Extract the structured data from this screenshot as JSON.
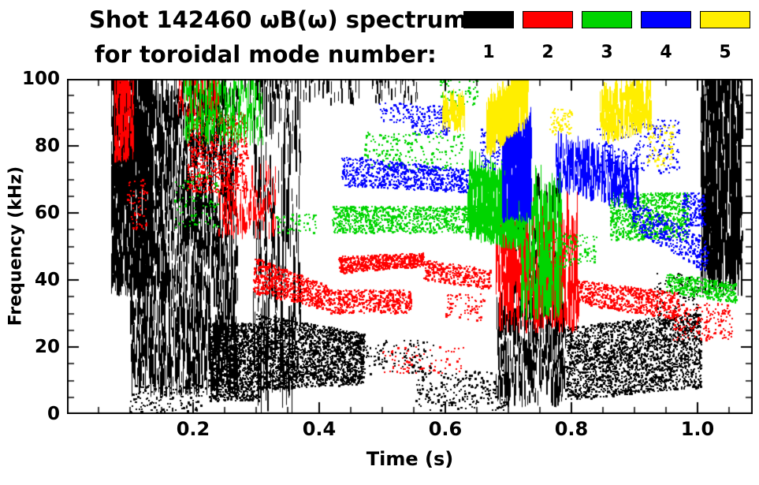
{
  "header": {
    "title_line1": "Shot 142460 ωB(ω) spectrum",
    "title_line2": "for toroidal mode number:"
  },
  "legend": {
    "items": [
      {
        "label": "1",
        "color": "#000000"
      },
      {
        "label": "2",
        "color": "#ff0000"
      },
      {
        "label": "3",
        "color": "#00d400"
      },
      {
        "label": "4",
        "color": "#0000ff"
      },
      {
        "label": "5",
        "color": "#ffee00"
      }
    ]
  },
  "chart_data": {
    "type": "scatter",
    "title": "Shot 142460 ωB(ω) spectrum for toroidal mode number",
    "xlabel": "Time (s)",
    "ylabel": "Frequency (kHz)",
    "xlim": [
      0,
      1.0875
    ],
    "ylim": [
      0,
      100
    ],
    "x_ticks": [
      0.2,
      0.4,
      0.6,
      0.8,
      1.0
    ],
    "x_tick_labels": [
      "0.2",
      "0.4",
      "0.6",
      "0.8",
      "1.0"
    ],
    "y_ticks": [
      0,
      20,
      40,
      60,
      80,
      100
    ],
    "y_tick_labels": [
      "0",
      "20",
      "40",
      "60",
      "80",
      "100"
    ],
    "x_minor_step": 0.05,
    "y_minor_step": 5,
    "grid": false,
    "legend_position": "top-right",
    "seed": 7,
    "series": [
      {
        "name": "toroidal mode n=1",
        "label": "1",
        "color": "#000000",
        "clusters": [
          {
            "t": [
              0.07,
              0.135
            ],
            "f": [
              35,
              97
            ],
            "n": 900,
            "kind": "streaks",
            "len": [
              2,
              12
            ]
          },
          {
            "t": [
              0.1,
              0.27
            ],
            "f": [
              5,
              95
            ],
            "n": 1700,
            "kind": "streaks",
            "len": [
              2,
              10
            ]
          },
          {
            "t": [
              0.1,
              0.22
            ],
            "f": [
              0,
              9
            ],
            "n": 150,
            "kind": "dots"
          },
          {
            "t": [
              0.225,
              0.305
            ],
            "f": [
              4,
              27
            ],
            "n": 1300,
            "kind": "dots"
          },
          {
            "t": [
              0.295,
              0.37
            ],
            "f": [
              0,
              100
            ],
            "n": 240,
            "kind": "streaks",
            "len": [
              3,
              16
            ]
          },
          {
            "t": [
              0.3,
              0.47
            ],
            "f": [
              7,
              30
            ],
            "f_end": [
              9,
              24
            ],
            "n": 2100,
            "kind": "dots"
          },
          {
            "t": [
              0.28,
              0.56
            ],
            "f": [
              92,
              100
            ],
            "n": 110,
            "kind": "streaks",
            "len": [
              2,
              5
            ]
          },
          {
            "t": [
              0.46,
              0.58
            ],
            "f": [
              12,
              22
            ],
            "n": 130,
            "kind": "dots"
          },
          {
            "t": [
              0.55,
              0.7
            ],
            "f": [
              1,
              13
            ],
            "n": 240,
            "kind": "dots"
          },
          {
            "t": [
              0.68,
              0.79
            ],
            "f": [
              2,
              30
            ],
            "n": 380,
            "kind": "streaks",
            "len": [
              2,
              8
            ]
          },
          {
            "t": [
              0.7,
              0.78
            ],
            "f": [
              25,
              66
            ],
            "n": 200,
            "kind": "streaks",
            "len": [
              2,
              8
            ]
          },
          {
            "t": [
              0.79,
              1.005
            ],
            "f": [
              4,
              26
            ],
            "f_end": [
              8,
              30
            ],
            "n": 2300,
            "kind": "dots"
          },
          {
            "t": [
              0.93,
              1.0
            ],
            "f": [
              25,
              42
            ],
            "n": 110,
            "kind": "dots"
          },
          {
            "t": [
              1.005,
              1.07
            ],
            "f": [
              35,
              100
            ],
            "n": 650,
            "kind": "streaks",
            "len": [
              3,
              14
            ]
          }
        ]
      },
      {
        "name": "toroidal mode n=2",
        "label": "2",
        "color": "#ff0000",
        "clusters": [
          {
            "t": [
              0.075,
              0.105
            ],
            "f": [
              75,
              100
            ],
            "n": 190,
            "kind": "streaks",
            "len": [
              2,
              8
            ]
          },
          {
            "t": [
              0.095,
              0.125
            ],
            "f": [
              55,
              70
            ],
            "n": 60,
            "kind": "dots"
          },
          {
            "t": [
              0.175,
              0.24
            ],
            "f": [
              88,
              100
            ],
            "n": 110,
            "kind": "streaks",
            "len": [
              2,
              6
            ]
          },
          {
            "t": [
              0.19,
              0.285
            ],
            "f": [
              66,
              90
            ],
            "n": 650,
            "kind": "dots"
          },
          {
            "t": [
              0.24,
              0.33
            ],
            "f": [
              52,
              70
            ],
            "n": 150,
            "kind": "streaks",
            "len": [
              2,
              6
            ]
          },
          {
            "t": [
              0.295,
              0.415
            ],
            "f": [
              36,
              47
            ],
            "f_end": [
              31,
              38
            ],
            "n": 650,
            "kind": "dots"
          },
          {
            "t": [
              0.415,
              0.545
            ],
            "f": [
              30,
              37
            ],
            "n": 500,
            "kind": "dots"
          },
          {
            "t": [
              0.43,
              0.565
            ],
            "f": [
              42,
              47
            ],
            "f_end": [
              44,
              48
            ],
            "n": 600,
            "kind": "dots"
          },
          {
            "t": [
              0.565,
              0.67
            ],
            "f": [
              40,
              46
            ],
            "f_end": [
              37,
              43
            ],
            "n": 320,
            "kind": "dots"
          },
          {
            "t": [
              0.5,
              0.63
            ],
            "f": [
              12,
              20
            ],
            "n": 80,
            "kind": "dots"
          },
          {
            "t": [
              0.6,
              0.66
            ],
            "f": [
              28,
              36
            ],
            "n": 70,
            "kind": "dots"
          },
          {
            "t": [
              0.68,
              0.81
            ],
            "f": [
              24,
              52
            ],
            "n": 380,
            "kind": "streaks",
            "len": [
              4,
              16
            ]
          },
          {
            "t": [
              0.81,
              0.97
            ],
            "f": [
              33,
              40
            ],
            "f_end": [
              28,
              36
            ],
            "n": 650,
            "kind": "dots"
          },
          {
            "t": [
              0.96,
              1.055
            ],
            "f": [
              22,
              33
            ],
            "n": 180,
            "kind": "dots"
          }
        ]
      },
      {
        "name": "toroidal mode n=3",
        "label": "3",
        "color": "#00d400",
        "clusters": [
          {
            "t": [
              0.185,
              0.31
            ],
            "f": [
              80,
              97
            ],
            "n": 240,
            "kind": "streaks",
            "len": [
              2,
              7
            ]
          },
          {
            "t": [
              0.17,
              0.24
            ],
            "f": [
              55,
              72
            ],
            "n": 80,
            "kind": "dots"
          },
          {
            "t": [
              0.33,
              0.4
            ],
            "f": [
              54,
              60
            ],
            "n": 50,
            "kind": "dots"
          },
          {
            "t": [
              0.42,
              0.665
            ],
            "f": [
              54,
              62
            ],
            "n": 950,
            "kind": "dots"
          },
          {
            "t": [
              0.47,
              0.63
            ],
            "f": [
              73,
              84
            ],
            "n": 200,
            "kind": "dots"
          },
          {
            "t": [
              0.59,
              0.65
            ],
            "f": [
              92,
              100
            ],
            "n": 80,
            "kind": "dots"
          },
          {
            "t": [
              0.635,
              0.72
            ],
            "f": [
              52,
              72
            ],
            "f_end": [
              48,
              66
            ],
            "n": 420,
            "kind": "streaks",
            "len": [
              3,
              9
            ]
          },
          {
            "t": [
              0.72,
              0.785
            ],
            "f": [
              28,
              62
            ],
            "n": 240,
            "kind": "streaks",
            "len": [
              4,
              14
            ]
          },
          {
            "t": [
              0.76,
              0.84
            ],
            "f": [
              44,
              54
            ],
            "n": 110,
            "kind": "dots"
          },
          {
            "t": [
              0.86,
              0.985
            ],
            "f": [
              52,
              66
            ],
            "n": 850,
            "kind": "dots"
          },
          {
            "t": [
              0.95,
              1.06
            ],
            "f": [
              36,
              42
            ],
            "f_end": [
              33,
              39
            ],
            "n": 380,
            "kind": "dots"
          }
        ]
      },
      {
        "name": "toroidal mode n=4",
        "label": "4",
        "color": "#0000ff",
        "clusters": [
          {
            "t": [
              0.435,
              0.635
            ],
            "f": [
              68,
              77
            ],
            "f_end": [
              66,
              73
            ],
            "n": 750,
            "kind": "dots"
          },
          {
            "t": [
              0.495,
              0.545
            ],
            "f": [
              87,
              93
            ],
            "n": 60,
            "kind": "dots"
          },
          {
            "t": [
              0.545,
              0.605
            ],
            "f": [
              83,
              92
            ],
            "n": 150,
            "kind": "dots"
          },
          {
            "t": [
              0.655,
              0.695
            ],
            "f": [
              73,
              85
            ],
            "n": 110,
            "kind": "dots"
          },
          {
            "t": [
              0.69,
              0.735
            ],
            "f": [
              57,
              83
            ],
            "n": 520,
            "kind": "streaks",
            "len": [
              3,
              11
            ]
          },
          {
            "t": [
              0.775,
              0.905
            ],
            "f": [
              66,
              79
            ],
            "f_end": [
              60,
              72
            ],
            "n": 350,
            "kind": "streaks",
            "len": [
              2,
              7
            ]
          },
          {
            "t": [
              0.84,
              0.97
            ],
            "f": [
              72,
              88
            ],
            "n": 240,
            "kind": "dots"
          },
          {
            "t": [
              0.895,
              1.015
            ],
            "f": [
              55,
              64
            ],
            "f_end": [
              42,
              52
            ],
            "n": 380,
            "kind": "dots"
          },
          {
            "t": [
              0.975,
              1.01
            ],
            "f": [
              56,
              66
            ],
            "n": 140,
            "kind": "dots"
          }
        ]
      },
      {
        "name": "toroidal mode n=5",
        "label": "5",
        "color": "#ffee00",
        "clusters": [
          {
            "t": [
              0.595,
              0.63
            ],
            "f": [
              84,
              92
            ],
            "n": 100,
            "kind": "streaks",
            "len": [
              2,
              6
            ]
          },
          {
            "t": [
              0.665,
              0.73
            ],
            "f": [
              76,
              88
            ],
            "f_end": [
              86,
              99
            ],
            "n": 450,
            "kind": "streaks",
            "len": [
              3,
              9
            ]
          },
          {
            "t": [
              0.765,
              0.8
            ],
            "f": [
              83,
              91
            ],
            "n": 70,
            "kind": "dots"
          },
          {
            "t": [
              0.845,
              0.925
            ],
            "f": [
              80,
              92
            ],
            "f_end": [
              84,
              97
            ],
            "n": 300,
            "kind": "streaks",
            "len": [
              2,
              7
            ]
          },
          {
            "t": [
              0.92,
              0.96
            ],
            "f": [
              74,
              86
            ],
            "n": 80,
            "kind": "dots"
          }
        ]
      }
    ]
  }
}
